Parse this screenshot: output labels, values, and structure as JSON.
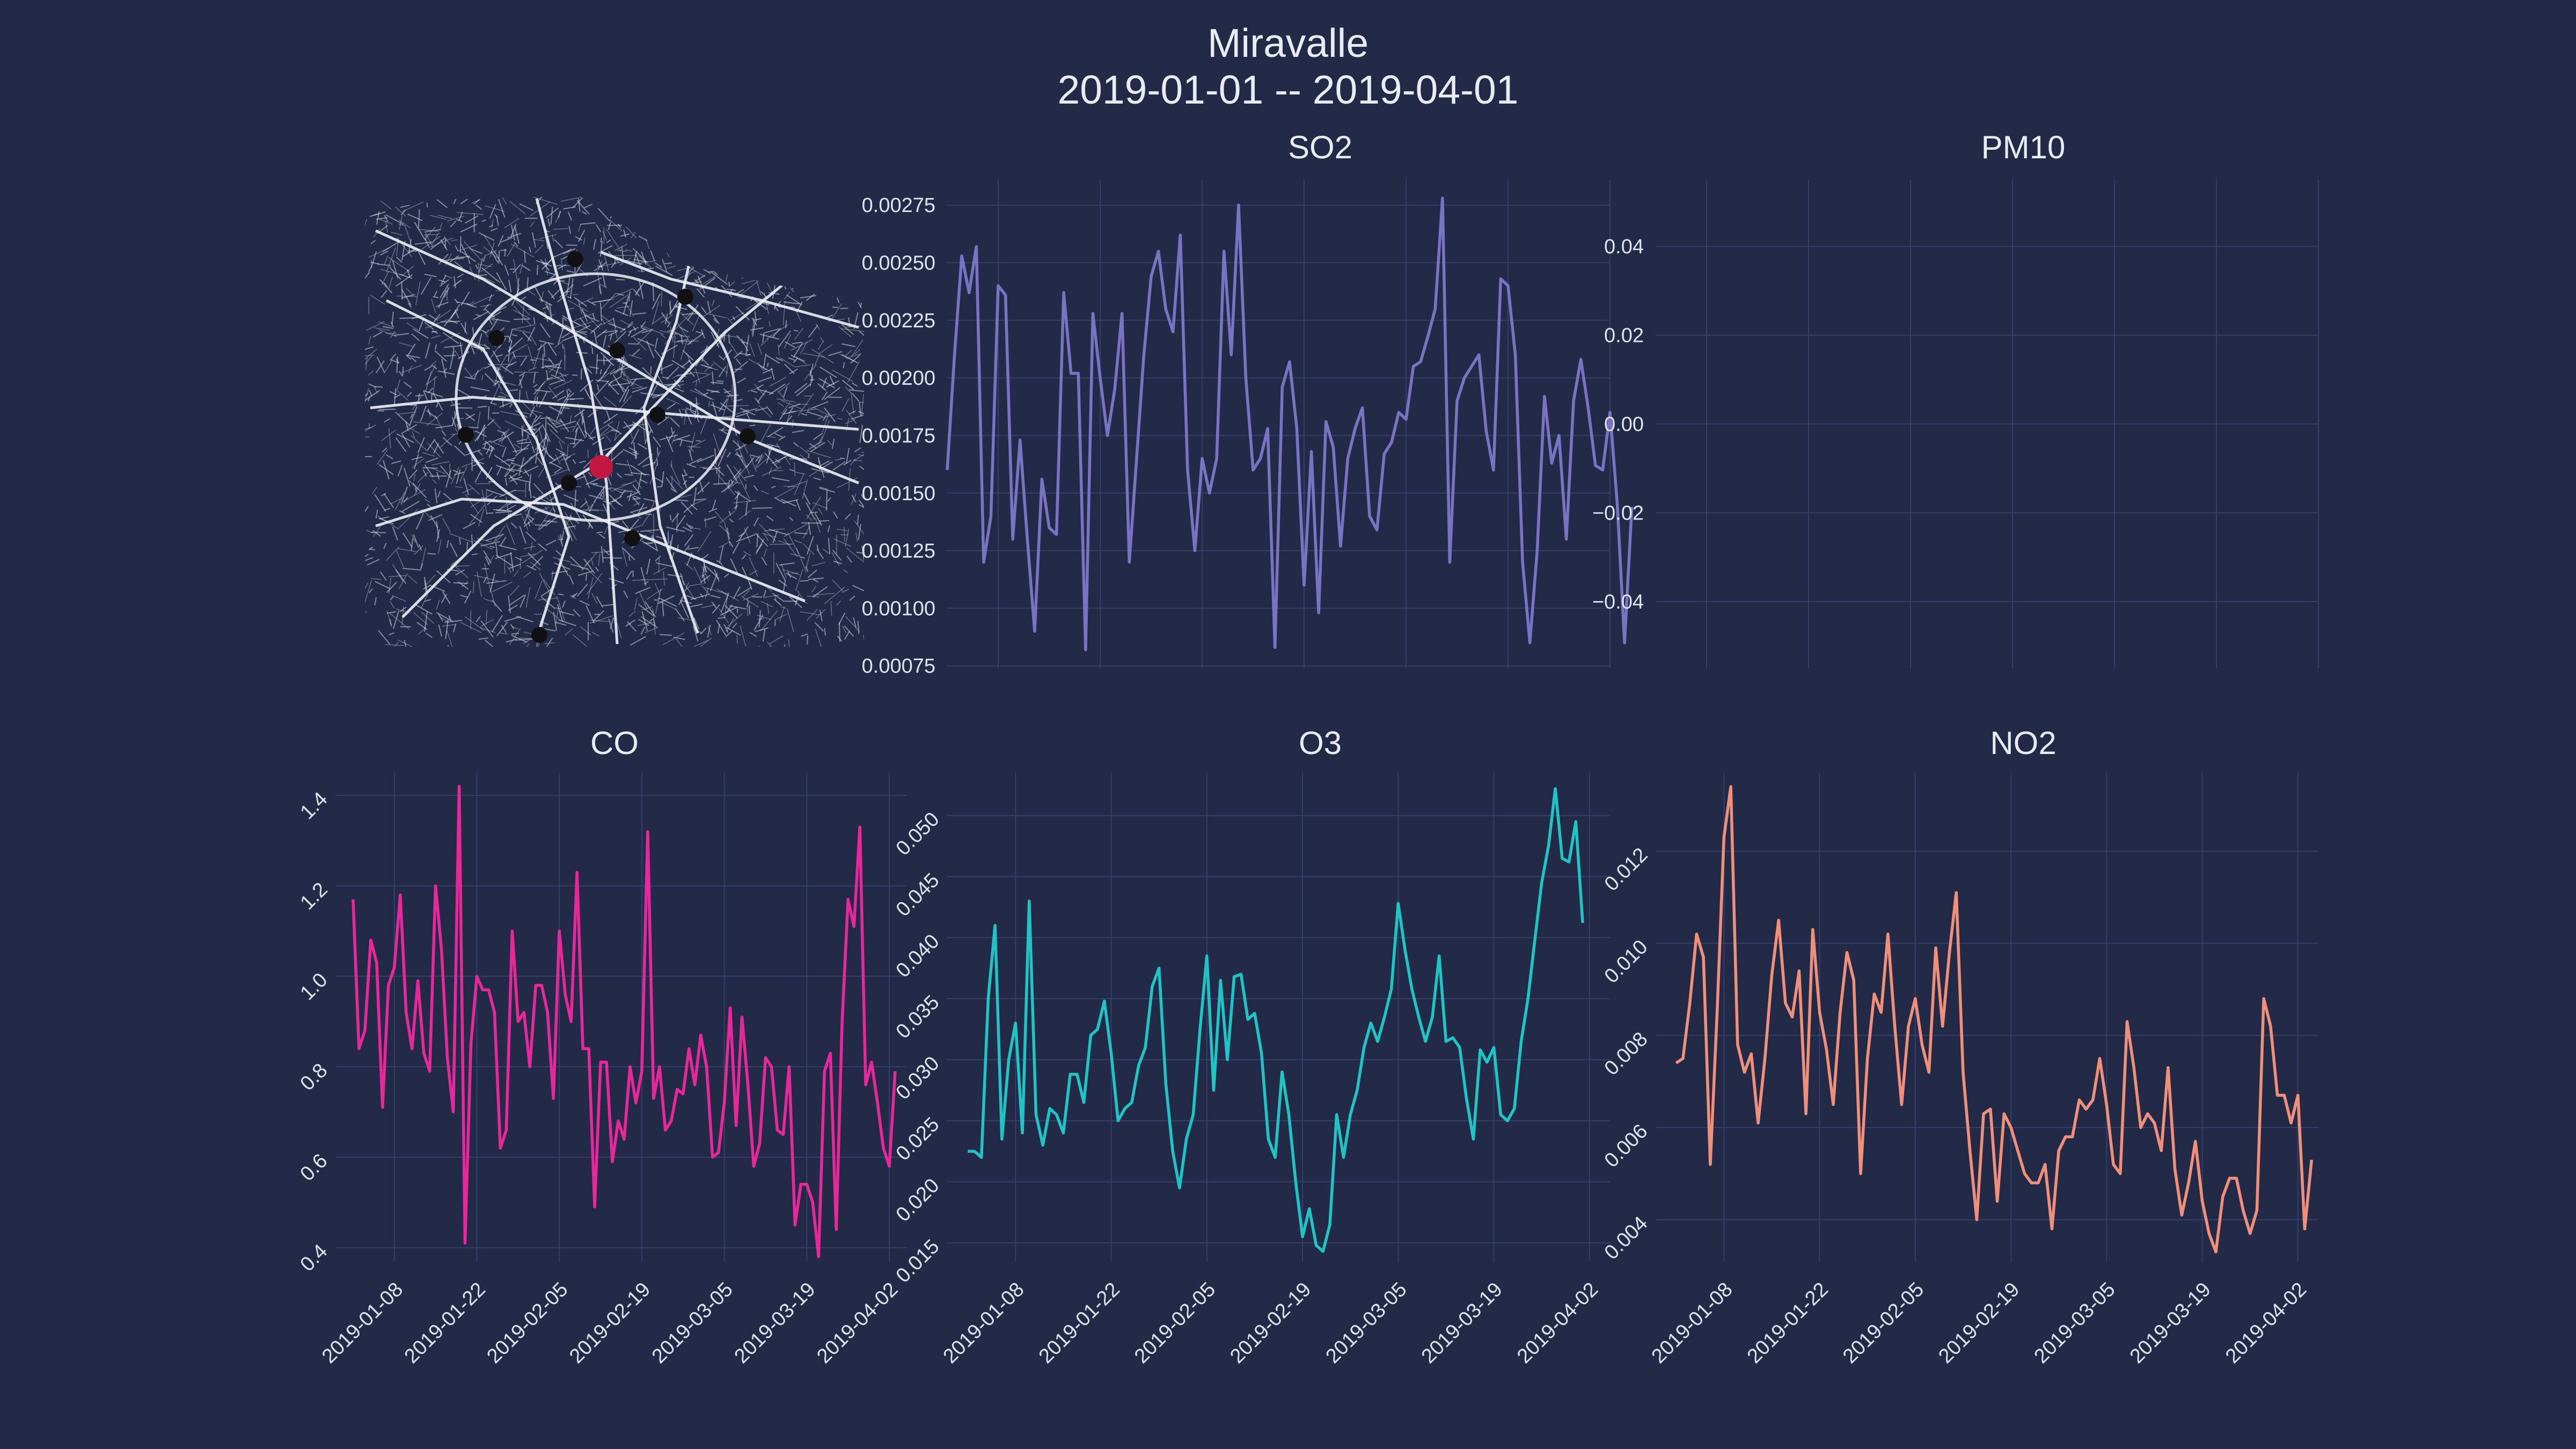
{
  "title": {
    "line1": "Miravalle",
    "line2": "2019-01-01 -- 2019-04-01"
  },
  "map": {
    "road_color": "#d6d9e6",
    "station_color": "#111111",
    "highlight_station_color": "#c2183f",
    "stations": 11,
    "highlighted_station": 1
  },
  "chart_data": [
    {
      "name": "SO2",
      "title": "SO2",
      "type": "line",
      "color": "#7a73c4",
      "x_start": "2019-01-01",
      "x_step_days": 1,
      "xlim": [
        "2019-01-01",
        "2019-04-02"
      ],
      "xticks": [
        "2019-01-08",
        "2019-01-22",
        "2019-02-05",
        "2019-02-19",
        "2019-03-05",
        "2019-03-19",
        "2019-04-02"
      ],
      "show_xtick_labels": false,
      "ylim": [
        0.00074,
        0.00286
      ],
      "yticks": [
        0.00075,
        0.001,
        0.00125,
        0.0015,
        0.00175,
        0.002,
        0.00225,
        0.0025,
        0.00275
      ],
      "ytick_labels": [
        "0.00075",
        "0.00100",
        "0.00125",
        "0.00150",
        "0.00175",
        "0.00200",
        "0.00225",
        "0.00250",
        "0.00275"
      ],
      "ytick_rotation": 0,
      "grid": true,
      "values": [
        0.0016,
        0.0021,
        0.00253,
        0.00237,
        0.00257,
        0.0012,
        0.0014,
        0.0024,
        0.00236,
        0.0013,
        0.00173,
        0.0013,
        0.0009,
        0.00156,
        0.00135,
        0.00132,
        0.00237,
        0.00202,
        0.00202,
        0.00082,
        0.00228,
        0.002,
        0.00175,
        0.00195,
        0.00228,
        0.0012,
        0.00165,
        0.0021,
        0.00244,
        0.00255,
        0.0023,
        0.0022,
        0.00262,
        0.0016,
        0.00125,
        0.00165,
        0.0015,
        0.00165,
        0.00255,
        0.0021,
        0.00275,
        0.002,
        0.0016,
        0.00165,
        0.00178,
        0.00083,
        0.00196,
        0.00207,
        0.00178,
        0.0011,
        0.00168,
        0.00098,
        0.00181,
        0.0017,
        0.00127,
        0.00165,
        0.00178,
        0.00187,
        0.0014,
        0.00134,
        0.00167,
        0.00172,
        0.00185,
        0.00182,
        0.00205,
        0.00207,
        0.00218,
        0.0023,
        0.00278,
        0.0012,
        0.0019,
        0.002,
        0.00205,
        0.0021,
        0.00177,
        0.0016,
        0.00243,
        0.0024,
        0.0021,
        0.0012,
        0.00085,
        0.00125,
        0.00192,
        0.00163,
        0.00175,
        0.0013,
        0.0019,
        0.00208,
        0.00187,
        0.00162,
        0.0016,
        0.00185,
        0.00145,
        0.00085,
        0.00144
      ]
    },
    {
      "name": "PM10",
      "title": "PM10",
      "type": "line",
      "color": "#5fd3e0",
      "x_start": "2019-01-01",
      "x_step_days": 1,
      "xlim": [
        "2019-01-01",
        "2019-04-02"
      ],
      "xticks": [
        "2019-01-08",
        "2019-01-22",
        "2019-02-05",
        "2019-02-19",
        "2019-03-05",
        "2019-03-19",
        "2019-04-02"
      ],
      "show_xtick_labels": false,
      "ylim": [
        -0.055,
        0.055
      ],
      "yticks": [
        -0.04,
        -0.02,
        0,
        0.02,
        0.04
      ],
      "ytick_labels": [
        "−0.04",
        "−0.02",
        "0.00",
        "0.02",
        "0.04"
      ],
      "ytick_rotation": 0,
      "grid": true,
      "values": []
    },
    {
      "name": "CO",
      "title": "CO",
      "type": "line",
      "color": "#e8289a",
      "x_start": "2019-01-01",
      "x_step_days": 1,
      "xlim": [
        "2018-12-29",
        "2019-04-05"
      ],
      "xticks": [
        "2019-01-08",
        "2019-01-22",
        "2019-02-05",
        "2019-02-19",
        "2019-03-05",
        "2019-03-19",
        "2019-04-02"
      ],
      "xtick_labels": [
        "2019-01-08",
        "2019-01-22",
        "2019-02-05",
        "2019-02-19",
        "2019-03-05",
        "2019-03-19",
        "2019-04-02"
      ],
      "show_xtick_labels": true,
      "ylim": [
        0.37,
        1.45
      ],
      "yticks": [
        0.4,
        0.6,
        0.8,
        1.0,
        1.2,
        1.4
      ],
      "ytick_labels": [
        "0.4",
        "0.6",
        "0.8",
        "1.0",
        "1.2",
        "1.4"
      ],
      "ytick_rotation": -45,
      "grid": true,
      "values": [
        1.17,
        0.84,
        0.88,
        1.08,
        1.03,
        0.71,
        0.98,
        1.02,
        1.18,
        0.92,
        0.84,
        0.99,
        0.83,
        0.79,
        1.2,
        1.06,
        0.82,
        0.7,
        1.42,
        0.41,
        0.85,
        1.0,
        0.97,
        0.97,
        0.92,
        0.62,
        0.66,
        1.1,
        0.9,
        0.92,
        0.8,
        0.98,
        0.98,
        0.92,
        0.73,
        1.1,
        0.96,
        0.9,
        1.23,
        0.84,
        0.84,
        0.49,
        0.81,
        0.81,
        0.59,
        0.68,
        0.64,
        0.8,
        0.72,
        0.79,
        1.32,
        0.73,
        0.8,
        0.66,
        0.68,
        0.75,
        0.74,
        0.84,
        0.76,
        0.87,
        0.8,
        0.6,
        0.61,
        0.72,
        0.93,
        0.67,
        0.91,
        0.76,
        0.58,
        0.63,
        0.82,
        0.8,
        0.66,
        0.65,
        0.8,
        0.45,
        0.54,
        0.54,
        0.5,
        0.38,
        0.79,
        0.83,
        0.44,
        0.9,
        1.17,
        1.11,
        1.33,
        0.76,
        0.81,
        0.72,
        0.62,
        0.58,
        0.79
      ]
    },
    {
      "name": "O3",
      "title": "O3",
      "type": "line",
      "color": "#1fc4c4",
      "x_start": "2019-01-01",
      "x_step_days": 1,
      "xlim": [
        "2018-12-29",
        "2019-04-05"
      ],
      "xticks": [
        "2019-01-08",
        "2019-01-22",
        "2019-02-05",
        "2019-02-19",
        "2019-03-05",
        "2019-03-19",
        "2019-04-02"
      ],
      "xtick_labels": [
        "2019-01-08",
        "2019-01-22",
        "2019-02-05",
        "2019-02-19",
        "2019-03-05",
        "2019-03-19",
        "2019-04-02"
      ],
      "show_xtick_labels": true,
      "ylim": [
        0.0135,
        0.0535
      ],
      "yticks": [
        0.015,
        0.02,
        0.025,
        0.03,
        0.035,
        0.04,
        0.045,
        0.05
      ],
      "ytick_labels": [
        "0.015",
        "0.020",
        "0.025",
        "0.030",
        "0.035",
        "0.040",
        "0.045",
        "0.050"
      ],
      "ytick_rotation": -45,
      "grid": true,
      "values": [
        0.0225,
        0.0225,
        0.022,
        0.035,
        0.041,
        0.0235,
        0.03,
        0.033,
        0.024,
        0.043,
        0.0255,
        0.023,
        0.026,
        0.0255,
        0.024,
        0.0288,
        0.0288,
        0.0265,
        0.032,
        0.0325,
        0.0348,
        0.0305,
        0.025,
        0.026,
        0.0265,
        0.0295,
        0.031,
        0.036,
        0.0375,
        0.028,
        0.0225,
        0.0195,
        0.0235,
        0.0255,
        0.0325,
        0.0385,
        0.0275,
        0.0365,
        0.03,
        0.0368,
        0.037,
        0.0333,
        0.0338,
        0.0305,
        0.0235,
        0.022,
        0.029,
        0.0255,
        0.02,
        0.0155,
        0.0178,
        0.0148,
        0.0143,
        0.0165,
        0.0255,
        0.022,
        0.0255,
        0.0275,
        0.031,
        0.033,
        0.0315,
        0.0335,
        0.0358,
        0.0428,
        0.039,
        0.0358,
        0.0335,
        0.0315,
        0.0335,
        0.0385,
        0.0315,
        0.0318,
        0.031,
        0.0268,
        0.0235,
        0.0308,
        0.0298,
        0.031,
        0.0255,
        0.025,
        0.026,
        0.0315,
        0.035,
        0.0398,
        0.0445,
        0.0475,
        0.0522,
        0.0465,
        0.0462,
        0.0495,
        0.0412
      ]
    },
    {
      "name": "NO2",
      "title": "NO2",
      "type": "line",
      "color": "#f0907a",
      "x_start": "2019-01-01",
      "x_step_days": 1,
      "xlim": [
        "2018-12-29",
        "2019-04-05"
      ],
      "xticks": [
        "2019-01-08",
        "2019-01-22",
        "2019-02-05",
        "2019-02-19",
        "2019-03-05",
        "2019-03-19",
        "2019-04-02"
      ],
      "xtick_labels": [
        "2019-01-08",
        "2019-01-22",
        "2019-02-05",
        "2019-02-19",
        "2019-03-05",
        "2019-03-19",
        "2019-04-02"
      ],
      "show_xtick_labels": true,
      "ylim": [
        0.0031,
        0.0137
      ],
      "yticks": [
        0.004,
        0.006,
        0.008,
        0.01,
        0.012
      ],
      "ytick_labels": [
        "0.004",
        "0.006",
        "0.008",
        "0.010",
        "0.012"
      ],
      "ytick_rotation": -45,
      "grid": true,
      "values": [
        0.0074,
        0.0075,
        0.0087,
        0.0102,
        0.0097,
        0.0052,
        0.0085,
        0.0123,
        0.0134,
        0.0078,
        0.0072,
        0.0076,
        0.0061,
        0.0075,
        0.0093,
        0.0105,
        0.0087,
        0.0084,
        0.0094,
        0.0063,
        0.0103,
        0.0085,
        0.0077,
        0.0065,
        0.0085,
        0.0098,
        0.0092,
        0.005,
        0.0075,
        0.0089,
        0.0085,
        0.0102,
        0.0082,
        0.0065,
        0.0082,
        0.0088,
        0.0078,
        0.0072,
        0.0099,
        0.0082,
        0.0098,
        0.0111,
        0.0072,
        0.0055,
        0.004,
        0.0063,
        0.0064,
        0.0044,
        0.0063,
        0.006,
        0.0055,
        0.005,
        0.0048,
        0.0048,
        0.0052,
        0.0038,
        0.0055,
        0.0058,
        0.0058,
        0.0066,
        0.0064,
        0.0066,
        0.0075,
        0.0065,
        0.0052,
        0.005,
        0.0083,
        0.0073,
        0.006,
        0.0063,
        0.0061,
        0.0055,
        0.0073,
        0.0051,
        0.0041,
        0.0048,
        0.0057,
        0.0044,
        0.0037,
        0.0033,
        0.0045,
        0.0049,
        0.0049,
        0.0042,
        0.0037,
        0.0042,
        0.0088,
        0.0082,
        0.0067,
        0.0067,
        0.0061,
        0.0067,
        0.0038,
        0.0053
      ]
    }
  ]
}
